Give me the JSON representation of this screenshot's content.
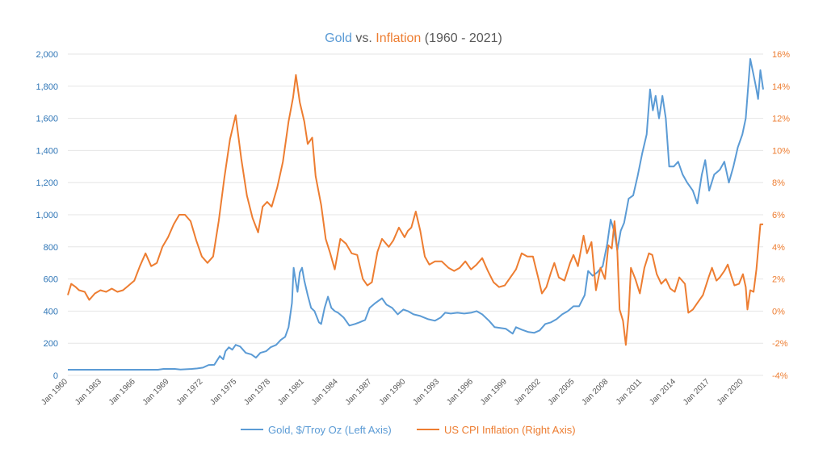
{
  "chart_data": {
    "type": "line",
    "title_parts": [
      "Gold",
      " vs. ",
      "Inflation",
      " (1960 - 2021)"
    ],
    "y_left": {
      "min": 0,
      "max": 2000,
      "step": 200,
      "tick_labels": [
        "0",
        "200",
        "400",
        "600",
        "800",
        "1,000",
        "1,200",
        "1,400",
        "1,600",
        "1,800",
        "2,000"
      ]
    },
    "y_right": {
      "min": -4,
      "max": 16,
      "step": 2,
      "tick_labels": [
        "-4%",
        "-2%",
        "0%",
        "2%",
        "4%",
        "6%",
        "8%",
        "10%",
        "12%",
        "14%",
        "16%"
      ]
    },
    "x_range": [
      1960,
      2021.75
    ],
    "x_tick_labels": [
      "Jan 1960",
      "Jan 1963",
      "Jan 1966",
      "Jan 1969",
      "Jan 1972",
      "Jan 1975",
      "Jan 1978",
      "Jan 1981",
      "Jan 1984",
      "Jan 1987",
      "Jan 1990",
      "Jan 1993",
      "Jan 1996",
      "Jan 1999",
      "Jan 2002",
      "Jan 2005",
      "Jan 2008",
      "Jan 2011",
      "Jan 2014",
      "Jan 2017",
      "Jan 2020"
    ],
    "x_tick_years": [
      1960,
      1963,
      1966,
      1969,
      1972,
      1975,
      1978,
      1981,
      1984,
      1987,
      1990,
      1993,
      1996,
      1999,
      2002,
      2005,
      2008,
      2011,
      2014,
      2017,
      2020
    ],
    "grid": true,
    "legend_position": "bottom",
    "series": [
      {
        "name": "Gold, $/Troy Oz (Left Axis)",
        "axis": "left",
        "color": "#5b9bd5",
        "points": [
          [
            1960,
            35
          ],
          [
            1968,
            35
          ],
          [
            1968.5,
            40
          ],
          [
            1969.5,
            40
          ],
          [
            1970,
            36
          ],
          [
            1971,
            40
          ],
          [
            1971.5,
            43
          ],
          [
            1972,
            48
          ],
          [
            1972.5,
            65
          ],
          [
            1973,
            66
          ],
          [
            1973.5,
            120
          ],
          [
            1973.8,
            100
          ],
          [
            1974,
            150
          ],
          [
            1974.3,
            175
          ],
          [
            1974.6,
            160
          ],
          [
            1974.9,
            190
          ],
          [
            1975.3,
            180
          ],
          [
            1975.8,
            140
          ],
          [
            1976.3,
            130
          ],
          [
            1976.7,
            110
          ],
          [
            1977.1,
            140
          ],
          [
            1977.6,
            150
          ],
          [
            1978,
            175
          ],
          [
            1978.5,
            190
          ],
          [
            1978.9,
            220
          ],
          [
            1979.3,
            240
          ],
          [
            1979.6,
            300
          ],
          [
            1979.9,
            450
          ],
          [
            1980.05,
            670
          ],
          [
            1980.2,
            600
          ],
          [
            1980.4,
            520
          ],
          [
            1980.6,
            640
          ],
          [
            1980.8,
            670
          ],
          [
            1981,
            590
          ],
          [
            1981.3,
            500
          ],
          [
            1981.6,
            420
          ],
          [
            1981.9,
            400
          ],
          [
            1982.3,
            330
          ],
          [
            1982.5,
            320
          ],
          [
            1982.8,
            420
          ],
          [
            1983.1,
            490
          ],
          [
            1983.4,
            420
          ],
          [
            1983.7,
            400
          ],
          [
            1984,
            390
          ],
          [
            1984.5,
            360
          ],
          [
            1985,
            310
          ],
          [
            1985.5,
            320
          ],
          [
            1985.9,
            330
          ],
          [
            1986.4,
            345
          ],
          [
            1986.8,
            420
          ],
          [
            1987.3,
            450
          ],
          [
            1987.9,
            480
          ],
          [
            1988.3,
            440
          ],
          [
            1988.8,
            420
          ],
          [
            1989.3,
            380
          ],
          [
            1989.8,
            410
          ],
          [
            1990.2,
            400
          ],
          [
            1990.7,
            380
          ],
          [
            1991.3,
            370
          ],
          [
            1992,
            350
          ],
          [
            1992.6,
            340
          ],
          [
            1993.1,
            360
          ],
          [
            1993.5,
            390
          ],
          [
            1994,
            385
          ],
          [
            1994.6,
            390
          ],
          [
            1995.2,
            385
          ],
          [
            1995.8,
            390
          ],
          [
            1996.3,
            400
          ],
          [
            1996.8,
            380
          ],
          [
            1997.4,
            340
          ],
          [
            1997.9,
            300
          ],
          [
            1998.4,
            295
          ],
          [
            1998.9,
            290
          ],
          [
            1999.5,
            260
          ],
          [
            1999.8,
            300
          ],
          [
            2000.3,
            285
          ],
          [
            2000.9,
            270
          ],
          [
            2001.4,
            265
          ],
          [
            2001.9,
            280
          ],
          [
            2002.4,
            320
          ],
          [
            2002.9,
            330
          ],
          [
            2003.4,
            350
          ],
          [
            2003.9,
            380
          ],
          [
            2004.4,
            400
          ],
          [
            2004.9,
            430
          ],
          [
            2005.4,
            430
          ],
          [
            2005.9,
            500
          ],
          [
            2006.2,
            650
          ],
          [
            2006.6,
            620
          ],
          [
            2007,
            640
          ],
          [
            2007.5,
            680
          ],
          [
            2007.9,
            820
          ],
          [
            2008.2,
            970
          ],
          [
            2008.5,
            900
          ],
          [
            2008.8,
            780
          ],
          [
            2009.1,
            900
          ],
          [
            2009.4,
            950
          ],
          [
            2009.8,
            1100
          ],
          [
            2010.2,
            1120
          ],
          [
            2010.6,
            1240
          ],
          [
            2011,
            1380
          ],
          [
            2011.4,
            1500
          ],
          [
            2011.7,
            1780
          ],
          [
            2011.95,
            1650
          ],
          [
            2012.2,
            1740
          ],
          [
            2012.5,
            1600
          ],
          [
            2012.8,
            1740
          ],
          [
            2013.1,
            1600
          ],
          [
            2013.4,
            1300
          ],
          [
            2013.8,
            1300
          ],
          [
            2014.2,
            1330
          ],
          [
            2014.6,
            1250
          ],
          [
            2015,
            1200
          ],
          [
            2015.5,
            1150
          ],
          [
            2015.9,
            1070
          ],
          [
            2016.3,
            1250
          ],
          [
            2016.6,
            1340
          ],
          [
            2016.95,
            1150
          ],
          [
            2017.4,
            1250
          ],
          [
            2017.9,
            1280
          ],
          [
            2018.3,
            1330
          ],
          [
            2018.7,
            1200
          ],
          [
            2019.1,
            1300
          ],
          [
            2019.5,
            1420
          ],
          [
            2019.9,
            1500
          ],
          [
            2020.2,
            1600
          ],
          [
            2020.6,
            1970
          ],
          [
            2020.9,
            1870
          ],
          [
            2021.1,
            1800
          ],
          [
            2021.3,
            1720
          ],
          [
            2021.5,
            1900
          ],
          [
            2021.75,
            1780
          ]
        ]
      },
      {
        "name": "US CPI Inflation (Right Axis)",
        "axis": "right",
        "color": "#ed7d31",
        "points": [
          [
            1960,
            1.0
          ],
          [
            1960.3,
            1.7
          ],
          [
            1960.7,
            1.5
          ],
          [
            1961,
            1.3
          ],
          [
            1961.5,
            1.2
          ],
          [
            1961.9,
            0.7
          ],
          [
            1962.4,
            1.1
          ],
          [
            1962.9,
            1.3
          ],
          [
            1963.4,
            1.2
          ],
          [
            1963.9,
            1.4
          ],
          [
            1964.4,
            1.2
          ],
          [
            1964.9,
            1.3
          ],
          [
            1965.4,
            1.6
          ],
          [
            1965.9,
            1.9
          ],
          [
            1966.4,
            2.8
          ],
          [
            1966.9,
            3.6
          ],
          [
            1967.4,
            2.8
          ],
          [
            1967.9,
            3.0
          ],
          [
            1968.4,
            4.0
          ],
          [
            1968.9,
            4.6
          ],
          [
            1969.4,
            5.4
          ],
          [
            1969.9,
            6.0
          ],
          [
            1970.4,
            6.0
          ],
          [
            1970.9,
            5.6
          ],
          [
            1971.4,
            4.4
          ],
          [
            1971.9,
            3.4
          ],
          [
            1972.4,
            3.0
          ],
          [
            1972.9,
            3.4
          ],
          [
            1973.4,
            5.6
          ],
          [
            1973.9,
            8.3
          ],
          [
            1974.4,
            10.7
          ],
          [
            1974.9,
            12.2
          ],
          [
            1975.4,
            9.5
          ],
          [
            1975.9,
            7.2
          ],
          [
            1976.4,
            5.8
          ],
          [
            1976.9,
            4.9
          ],
          [
            1977.3,
            6.5
          ],
          [
            1977.7,
            6.8
          ],
          [
            1978.1,
            6.5
          ],
          [
            1978.6,
            7.7
          ],
          [
            1979.1,
            9.3
          ],
          [
            1979.6,
            11.8
          ],
          [
            1980,
            13.3
          ],
          [
            1980.25,
            14.7
          ],
          [
            1980.6,
            13.0
          ],
          [
            1981,
            11.8
          ],
          [
            1981.3,
            10.4
          ],
          [
            1981.7,
            10.8
          ],
          [
            1982,
            8.4
          ],
          [
            1982.5,
            6.6
          ],
          [
            1982.9,
            4.5
          ],
          [
            1983.3,
            3.6
          ],
          [
            1983.7,
            2.6
          ],
          [
            1984.2,
            4.5
          ],
          [
            1984.7,
            4.2
          ],
          [
            1985.2,
            3.6
          ],
          [
            1985.7,
            3.5
          ],
          [
            1986.2,
            2.0
          ],
          [
            1986.6,
            1.6
          ],
          [
            1987,
            1.8
          ],
          [
            1987.5,
            3.7
          ],
          [
            1987.9,
            4.5
          ],
          [
            1988.5,
            4.0
          ],
          [
            1988.9,
            4.4
          ],
          [
            1989.4,
            5.2
          ],
          [
            1989.9,
            4.6
          ],
          [
            1990.2,
            5.0
          ],
          [
            1990.5,
            5.2
          ],
          [
            1990.9,
            6.2
          ],
          [
            1991.3,
            5.0
          ],
          [
            1991.7,
            3.4
          ],
          [
            1992.1,
            2.9
          ],
          [
            1992.6,
            3.1
          ],
          [
            1993.2,
            3.1
          ],
          [
            1993.8,
            2.7
          ],
          [
            1994.3,
            2.5
          ],
          [
            1994.8,
            2.7
          ],
          [
            1995.3,
            3.1
          ],
          [
            1995.8,
            2.6
          ],
          [
            1996.3,
            2.9
          ],
          [
            1996.8,
            3.3
          ],
          [
            1997.3,
            2.5
          ],
          [
            1997.8,
            1.8
          ],
          [
            1998.3,
            1.5
          ],
          [
            1998.8,
            1.6
          ],
          [
            1999.3,
            2.1
          ],
          [
            1999.8,
            2.6
          ],
          [
            2000.3,
            3.6
          ],
          [
            2000.8,
            3.4
          ],
          [
            2001.3,
            3.4
          ],
          [
            2001.8,
            2.0
          ],
          [
            2002.1,
            1.1
          ],
          [
            2002.5,
            1.5
          ],
          [
            2002.9,
            2.4
          ],
          [
            2003.2,
            3.0
          ],
          [
            2003.6,
            2.1
          ],
          [
            2004.1,
            1.9
          ],
          [
            2004.6,
            3.0
          ],
          [
            2004.9,
            3.5
          ],
          [
            2005.3,
            2.8
          ],
          [
            2005.8,
            4.7
          ],
          [
            2006.1,
            3.6
          ],
          [
            2006.5,
            4.3
          ],
          [
            2006.9,
            1.3
          ],
          [
            2007.3,
            2.7
          ],
          [
            2007.7,
            2.0
          ],
          [
            2008.0,
            4.1
          ],
          [
            2008.3,
            3.9
          ],
          [
            2008.55,
            5.6
          ],
          [
            2008.8,
            3.7
          ],
          [
            2009.0,
            0.1
          ],
          [
            2009.3,
            -0.6
          ],
          [
            2009.55,
            -2.1
          ],
          [
            2009.8,
            -0.2
          ],
          [
            2010.0,
            2.7
          ],
          [
            2010.4,
            2.0
          ],
          [
            2010.8,
            1.1
          ],
          [
            2011.2,
            2.7
          ],
          [
            2011.6,
            3.6
          ],
          [
            2011.9,
            3.5
          ],
          [
            2012.3,
            2.3
          ],
          [
            2012.7,
            1.7
          ],
          [
            2013.1,
            2.0
          ],
          [
            2013.5,
            1.4
          ],
          [
            2013.9,
            1.2
          ],
          [
            2014.3,
            2.1
          ],
          [
            2014.8,
            1.7
          ],
          [
            2015.1,
            -0.1
          ],
          [
            2015.5,
            0.1
          ],
          [
            2015.9,
            0.5
          ],
          [
            2016.4,
            1.0
          ],
          [
            2016.9,
            2.1
          ],
          [
            2017.2,
            2.7
          ],
          [
            2017.6,
            1.9
          ],
          [
            2017.9,
            2.1
          ],
          [
            2018.3,
            2.5
          ],
          [
            2018.6,
            2.9
          ],
          [
            2018.9,
            2.2
          ],
          [
            2019.2,
            1.6
          ],
          [
            2019.6,
            1.7
          ],
          [
            2019.95,
            2.3
          ],
          [
            2020.2,
            1.5
          ],
          [
            2020.35,
            0.1
          ],
          [
            2020.6,
            1.3
          ],
          [
            2020.9,
            1.2
          ],
          [
            2021.15,
            2.6
          ],
          [
            2021.35,
            4.2
          ],
          [
            2021.5,
            5.4
          ],
          [
            2021.75,
            5.4
          ]
        ]
      }
    ]
  }
}
